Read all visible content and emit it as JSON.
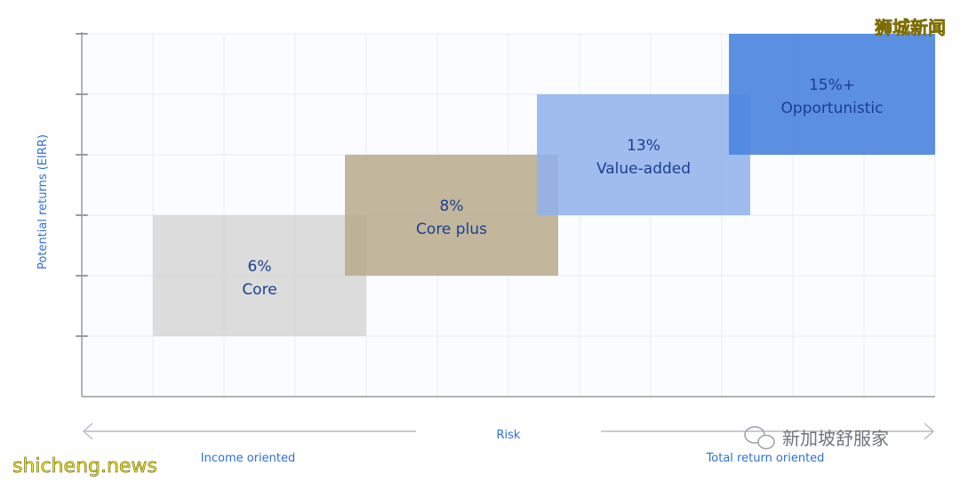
{
  "chart_data": {
    "type": "bar",
    "title": "",
    "xlabel": "Risk",
    "ylabel": "Potential returns (EIRR)",
    "x_left_label": "Income oriented",
    "x_right_label": "Total return oriented",
    "ylim": [
      0,
      6
    ],
    "xlim": [
      0,
      12
    ],
    "y_ticks": [
      1,
      2,
      3,
      4,
      5,
      6
    ],
    "grid": true,
    "series": [
      {
        "name": "Core",
        "return_label": "6%",
        "x_range": [
          1,
          4
        ],
        "y_range": [
          1,
          3
        ],
        "color": "#d6d6d6",
        "text_color": "#1c3f8f"
      },
      {
        "name": "Core plus",
        "return_label": "8%",
        "x_range": [
          3.7,
          6.7
        ],
        "y_range": [
          2,
          4
        ],
        "color": "#b7aa8c",
        "text_color": "#1c3f8f"
      },
      {
        "name": "Value-added",
        "return_label": "13%",
        "x_range": [
          6.4,
          9.4
        ],
        "y_range": [
          3,
          5
        ],
        "color": "#8fb0ec",
        "text_color": "#1c3f8f"
      },
      {
        "name": "Opportunistic",
        "return_label": "15%+",
        "x_range": [
          9.1,
          12
        ],
        "y_range": [
          4,
          6
        ],
        "color": "#4d85e0",
        "text_color": "#1c3f8f"
      }
    ]
  },
  "colors": {
    "axis": "#9a9a9a",
    "grid": "#e8ecf2",
    "plot_bg": "#fafcff",
    "accent_text": "#2f6fd6",
    "watermark_top": "#ffe600",
    "watermark_bottom": "#f3ea2a"
  },
  "watermarks": {
    "top_right": "狮城新闻",
    "bottom_left": "shicheng.news",
    "wechat_account": "新加坡舒服家"
  }
}
